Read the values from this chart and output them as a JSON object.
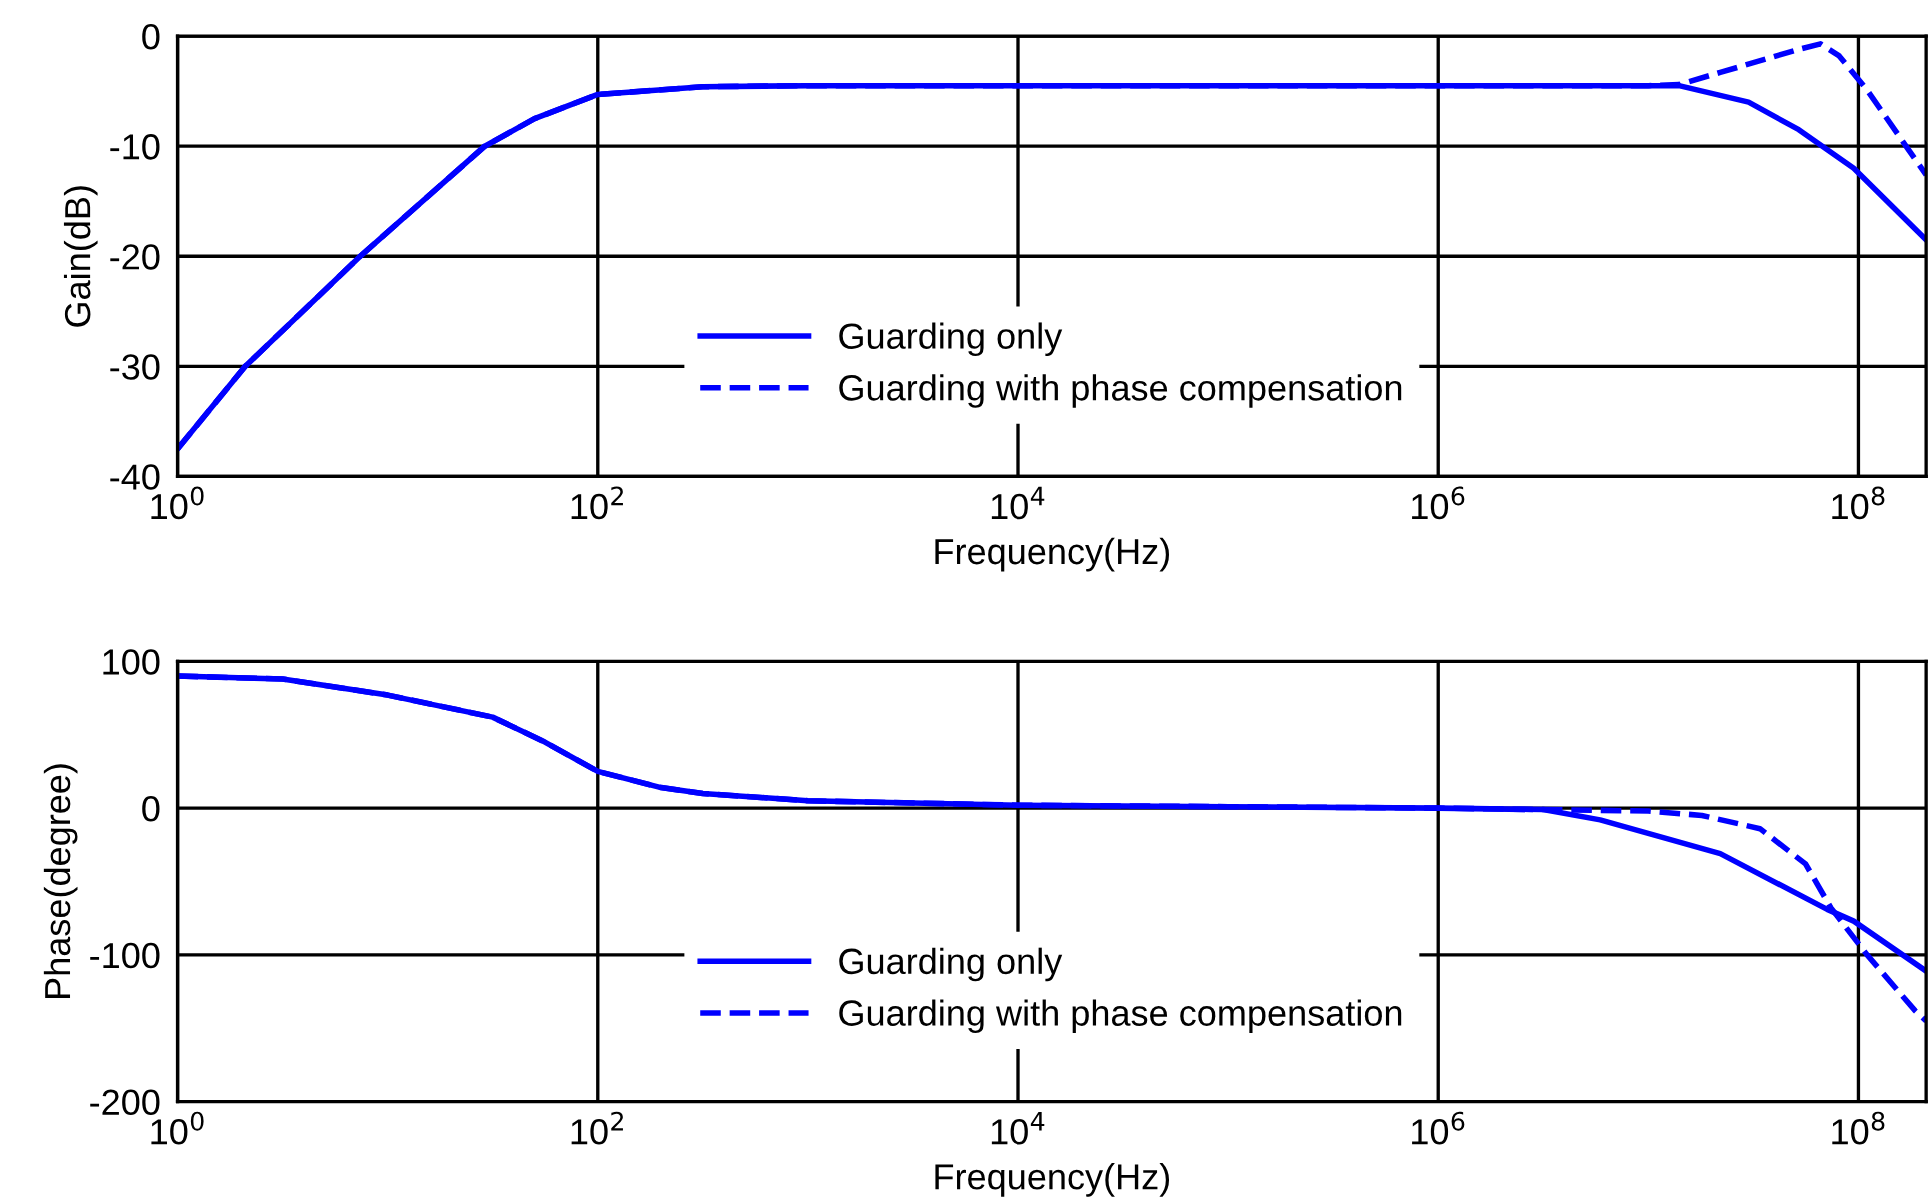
{
  "chart_data": [
    {
      "type": "line",
      "xlabel": "Frequency(Hz)",
      "ylabel": "Gain(dB)",
      "log": "x",
      "grid": true,
      "legend": "bottom",
      "xlim": [
        1,
        210000000
      ],
      "ylim": [
        -40,
        0
      ],
      "xticks": [
        {
          "value": 1,
          "label": "10$^{0}$"
        },
        {
          "value": 100,
          "label": "10$^{2}$"
        },
        {
          "value": 10000,
          "label": "10$^{4}$"
        },
        {
          "value": 1000000,
          "label": "10$^{6}$"
        },
        {
          "value": 100000000,
          "label": "10$^{8}$"
        }
      ],
      "yticks": [
        -40,
        -30,
        -20,
        -10,
        0
      ],
      "series": [
        {
          "name": "Guarding only",
          "color": "#0000ff",
          "line_style": "solid",
          "x": [
            1,
            2.1,
            7.4,
            29,
            50,
            100,
            316,
            1000,
            100000,
            10000000,
            14000000,
            30000000,
            52000000,
            95000000,
            210000000
          ],
          "values": [
            -37.5,
            -30,
            -20,
            -10,
            -7.5,
            -5.3,
            -4.6,
            -4.5,
            -4.5,
            -4.5,
            -4.5,
            -6,
            -8.5,
            -12,
            -18.5
          ]
        },
        {
          "name": "Guarding with phase compensation",
          "color": "#0000ff",
          "line_style": "dashed",
          "x": [
            1,
            2.1,
            7.4,
            29,
            50,
            100,
            316,
            1000,
            100000,
            10000000,
            14000000,
            22000000,
            52000000,
            66000000,
            81000000,
            110000000,
            170000000,
            210000000
          ],
          "values": [
            -37.5,
            -30,
            -20,
            -10,
            -7.5,
            -5.3,
            -4.6,
            -4.5,
            -4.5,
            -4.5,
            -4.4,
            -3.3,
            -1.2,
            -0.7,
            -1.8,
            -4.9,
            -10.1,
            -12.6
          ]
        }
      ]
    },
    {
      "type": "line",
      "xlabel": "Frequency(Hz)",
      "ylabel": "Phase(degree)",
      "log": "x",
      "grid": true,
      "legend": "bottom",
      "xlim": [
        1,
        210000000
      ],
      "ylim": [
        -200,
        100
      ],
      "xticks": [
        {
          "value": 1,
          "label": "10$^{0}$"
        },
        {
          "value": 100,
          "label": "10$^{2}$"
        },
        {
          "value": 10000,
          "label": "10$^{4}$"
        },
        {
          "value": 1000000,
          "label": "10$^{6}$"
        },
        {
          "value": 100000000,
          "label": "10$^{8}$"
        }
      ],
      "yticks": [
        -200,
        -100,
        0,
        100
      ],
      "series": [
        {
          "name": "Guarding only",
          "color": "#0000ff",
          "line_style": "solid",
          "x": [
            1,
            3.16,
            10,
            31.6,
            56,
            100,
            200,
            316,
            1000,
            10000,
            100000,
            1000000,
            3160000,
            5900000,
            22000000,
            71000000,
            95000000,
            210000000
          ],
          "values": [
            90,
            88,
            77,
            62,
            45,
            25,
            14,
            10,
            5,
            2,
            1,
            0,
            -1,
            -8,
            -31,
            -69,
            -77,
            -111
          ]
        },
        {
          "name": "Guarding with phase compensation",
          "color": "#0000ff",
          "line_style": "dashed",
          "x": [
            1,
            3.16,
            10,
            31.6,
            56,
            100,
            200,
            316,
            1000,
            10000,
            100000,
            1000000,
            3160000,
            10000000,
            18000000,
            34000000,
            56000000,
            74000000,
            110000000,
            186000000,
            210000000
          ],
          "values": [
            90,
            88,
            77,
            62,
            45,
            25,
            14,
            10,
            5,
            2,
            1,
            0,
            -1,
            -2,
            -5,
            -14,
            -38,
            -68,
            -100,
            -138,
            -145
          ]
        }
      ]
    }
  ]
}
